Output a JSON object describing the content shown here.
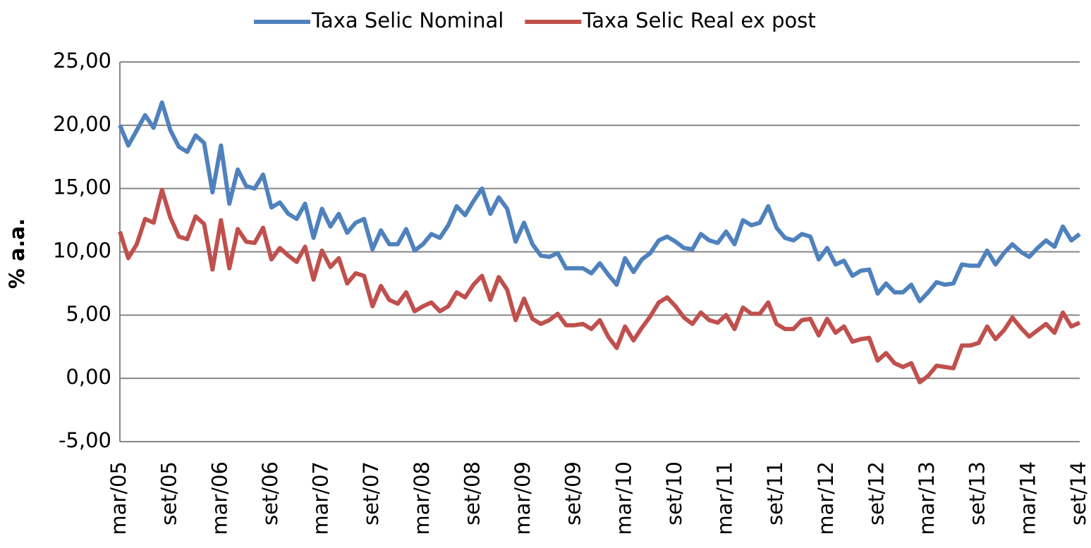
{
  "chart_data": {
    "type": "line",
    "y_label": "% a.a.",
    "legend": "top",
    "grid": true,
    "categories": [
      "mar/05",
      null,
      null,
      null,
      null,
      null,
      "set/05",
      null,
      null,
      null,
      null,
      null,
      "mar/06",
      null,
      null,
      null,
      null,
      null,
      "set/06",
      null,
      null,
      null,
      null,
      null,
      "mar/07",
      null,
      null,
      null,
      null,
      null,
      "set/07",
      null,
      null,
      null,
      null,
      null,
      "mar/08",
      null,
      null,
      null,
      null,
      null,
      "set/08",
      null,
      null,
      null,
      null,
      null,
      "mar/09",
      null,
      null,
      null,
      null,
      null,
      "set/09",
      null,
      null,
      null,
      null,
      null,
      "mar/10",
      null,
      null,
      null,
      null,
      null,
      "set/10",
      null,
      null,
      null,
      null,
      null,
      "mar/11",
      null,
      null,
      null,
      null,
      null,
      "set/11",
      null,
      null,
      null,
      null,
      null,
      "mar/12",
      null,
      null,
      null,
      null,
      null,
      "set/12",
      null,
      null,
      null,
      null,
      null,
      "mar/13",
      null,
      null,
      null,
      null,
      null,
      "set/13",
      null,
      null,
      null,
      null,
      null,
      "mar/14",
      null,
      null,
      null,
      null,
      null,
      "set/14"
    ],
    "series": [
      {
        "name": "Taxa Selic Nominal",
        "color": "#4f81bd",
        "values": [
          20.0,
          18.4,
          19.6,
          20.8,
          19.8,
          21.8,
          19.6,
          18.3,
          17.9,
          19.2,
          18.6,
          14.7,
          18.4,
          13.8,
          16.5,
          15.2,
          15.0,
          16.1,
          13.5,
          13.9,
          13.0,
          12.6,
          13.8,
          11.1,
          13.4,
          12.0,
          13.0,
          11.5,
          12.3,
          12.6,
          10.2,
          11.7,
          10.6,
          10.6,
          11.8,
          10.1,
          10.6,
          11.4,
          11.1,
          12.1,
          13.6,
          12.9,
          14.0,
          15.0,
          13.0,
          14.3,
          13.4,
          10.8,
          12.3,
          10.6,
          9.7,
          9.6,
          9.9,
          8.7,
          8.7,
          8.7,
          8.3,
          9.1,
          8.2,
          7.4,
          9.5,
          8.4,
          9.4,
          9.9,
          10.9,
          11.2,
          10.8,
          10.3,
          10.2,
          11.4,
          10.9,
          10.7,
          11.6,
          10.6,
          12.5,
          12.1,
          12.3,
          13.6,
          11.9,
          11.1,
          10.9,
          11.4,
          11.2,
          9.4,
          10.3,
          9.0,
          9.3,
          8.1,
          8.5,
          8.6,
          6.7,
          7.5,
          6.8,
          6.8,
          7.4,
          6.1,
          6.8,
          7.6,
          7.4,
          7.5,
          9.0,
          8.9,
          8.9,
          10.1,
          9.0,
          9.9,
          10.6,
          10.0,
          9.6,
          10.3,
          10.9,
          10.4,
          12.0,
          10.9,
          11.4
        ]
      },
      {
        "name": "Taxa Selic Real ex post",
        "color": "#c0504d",
        "values": [
          11.6,
          9.5,
          10.6,
          12.6,
          12.3,
          14.9,
          12.7,
          11.2,
          11.0,
          12.8,
          12.2,
          8.6,
          12.5,
          8.7,
          11.8,
          10.8,
          10.7,
          11.9,
          9.4,
          10.3,
          9.7,
          9.2,
          10.4,
          7.8,
          10.1,
          8.8,
          9.5,
          7.5,
          8.3,
          8.1,
          5.7,
          7.3,
          6.2,
          5.9,
          6.8,
          5.3,
          5.7,
          6.0,
          5.3,
          5.7,
          6.8,
          6.4,
          7.4,
          8.1,
          6.2,
          8.0,
          7.0,
          4.6,
          6.3,
          4.7,
          4.3,
          4.6,
          5.1,
          4.2,
          4.2,
          4.3,
          3.9,
          4.6,
          3.3,
          2.4,
          4.1,
          3.0,
          4.0,
          4.9,
          6.0,
          6.4,
          5.7,
          4.8,
          4.3,
          5.2,
          4.6,
          4.4,
          5.0,
          3.9,
          5.6,
          5.1,
          5.1,
          6.0,
          4.3,
          3.9,
          3.9,
          4.6,
          4.7,
          3.4,
          4.7,
          3.6,
          4.1,
          2.9,
          3.1,
          3.2,
          1.4,
          2.0,
          1.2,
          0.9,
          1.2,
          -0.3,
          0.2,
          1.0,
          0.9,
          0.8,
          2.6,
          2.6,
          2.8,
          4.1,
          3.1,
          3.8,
          4.8,
          4.0,
          3.3,
          3.8,
          4.3,
          3.6,
          5.2,
          4.1,
          4.4
        ]
      }
    ],
    "ylim": [
      -5,
      25
    ],
    "yticks": [
      {
        "value": -5,
        "label": "-5,00"
      },
      {
        "value": 0,
        "label": "0,00"
      },
      {
        "value": 5,
        "label": "5,00"
      },
      {
        "value": 10,
        "label": "10,00"
      },
      {
        "value": 15,
        "label": "15,00"
      },
      {
        "value": 20,
        "label": "20,00"
      },
      {
        "value": 25,
        "label": "25,00"
      }
    ]
  }
}
